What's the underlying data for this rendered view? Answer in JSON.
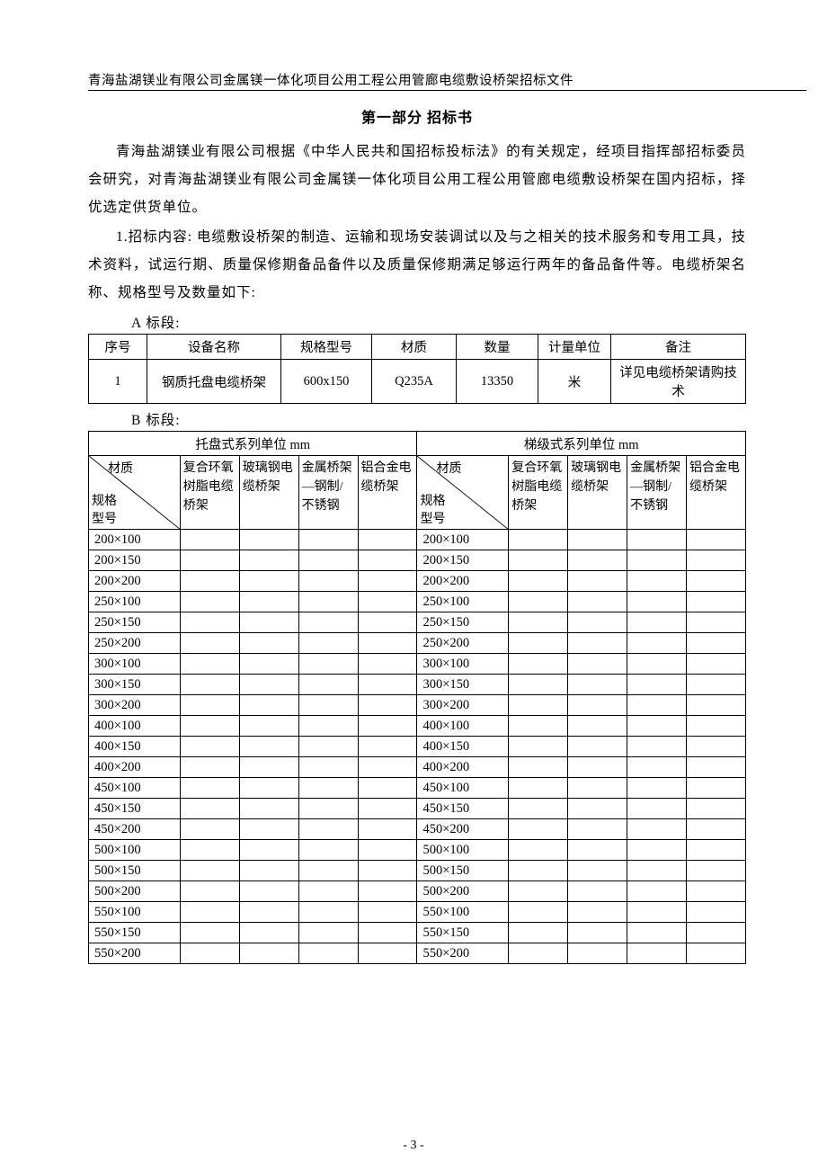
{
  "header": "青海盐湖镁业有限公司金属镁一体化项目公用工程公用管廊电缆敷设桥架招标文件",
  "title": "第一部分 招标书",
  "para1": "青海盐湖镁业有限公司根据《中华人民共和国招标投标法》的有关规定，经项目指挥部招标委员会研究，对青海盐湖镁业有限公司金属镁一体化项目公用工程公用管廊电缆敷设桥架在国内招标，择优选定供货单位。",
  "para2": "1.招标内容: 电缆敷设桥架的制造、运输和现场安装调试以及与之相关的技术服务和专用工具，技术资料，试运行期、质量保修期备品备件以及质量保修期满足够运行两年的备品备件等。电缆桥架名称、规格型号及数量如下:",
  "labelA": "A 标段:",
  "labelB": "B 标段:",
  "tblA": {
    "headers": [
      "序号",
      "设备名称",
      "规格型号",
      "材质",
      "数量",
      "计量单位",
      "备注"
    ],
    "row": [
      "1",
      "钢质托盘电缆桥架",
      "600x150",
      "Q235A",
      "13350",
      "米",
      "详见电缆桥架请购技术"
    ]
  },
  "tblB": {
    "super1": "托盘式系列单位 mm",
    "super2": "梯级式系列单位 mm",
    "diag": {
      "top": "材质",
      "mid": "规格",
      "bot": "型号"
    },
    "h1": "复合环氧树脂电缆桥架",
    "h2": "玻璃钢电缆桥架",
    "h3": "金属桥架 —钢制/不锈钢",
    "h4": "铝合金电缆桥架",
    "h2b": "玻璃钢电缆桥架",
    "specs": [
      "200×100",
      "200×150",
      "200×200",
      "250×100",
      "250×150",
      "250×200",
      "300×100",
      "300×150",
      "300×200",
      "400×100",
      "400×150",
      "400×200",
      "450×100",
      "450×150",
      "450×200",
      "500×100",
      "500×150",
      "500×200",
      "550×100",
      "550×150",
      "550×200"
    ]
  },
  "pageNum": "- 3 -"
}
